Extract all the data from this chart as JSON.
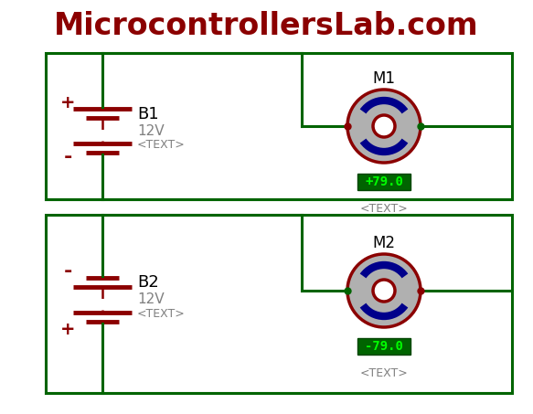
{
  "title": "MicrocontrollersLab.com",
  "title_color": "#8B0000",
  "title_fontsize": 24,
  "bg_color": "#FFFFFF",
  "circuit_color": "#006400",
  "battery_color": "#8B0000",
  "motor_border_color": "#8B0000",
  "motor_body_color": "#B0B0B0",
  "motor_arc_color": "#00008B",
  "motor_center_color": "#8B0000",
  "text_color": "#808080",
  "label_color": "#000000",
  "display_bg": "#006400",
  "display_text_color": "#00FF00",
  "circuit1": {
    "label": "B1",
    "voltage": "12V",
    "subtext": "<TEXT>",
    "motor_label": "M1",
    "motor_display": "+79.0",
    "motor_subtext": "<TEXT>",
    "plus_top": true
  },
  "circuit2": {
    "label": "B2",
    "voltage": "12V",
    "subtext": "<TEXT>",
    "motor_label": "M2",
    "motor_display": "-79.0",
    "motor_subtext": "<TEXT>",
    "plus_top": false
  },
  "lw": 2.2
}
